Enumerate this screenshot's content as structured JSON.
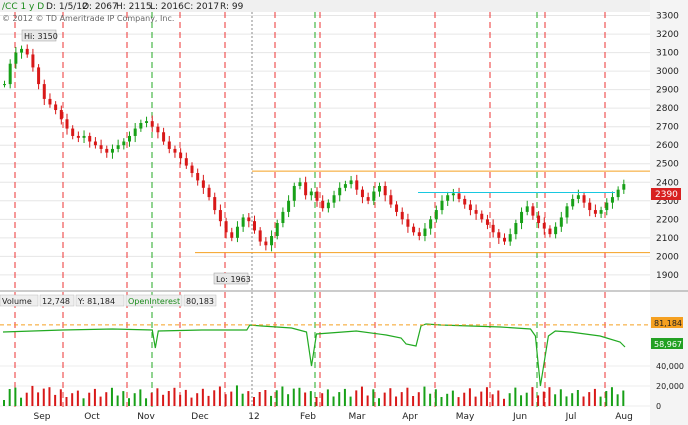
{
  "header": {
    "symbol": "/CC 1 y D",
    "date": "D: 1/5/12",
    "open": "O: 2067",
    "high": "H: 2115",
    "low": "L: 2016",
    "close": "C: 2017",
    "range": "R: 99",
    "copyright": "© 2012 © TD Ameritrade IP Company, Inc."
  },
  "annotations": {
    "hi": "Hi: 3150",
    "lo": "Lo: 1963"
  },
  "volume_panel": {
    "label": "Volume",
    "volume_value": "12,748",
    "y_readout": "Y: 81,184",
    "oi_label": "OpenInterest",
    "oi_value": "80,183",
    "oi_ref_tag": "81,184",
    "oi_last_tag": "58,967"
  },
  "colors": {
    "up": "#18a018",
    "down": "#d81818",
    "expiry_red": "#ee3333",
    "expiry_green": "#22aa22",
    "orange_line": "#f5a020",
    "cyan_line": "#18c8e0",
    "oi_line": "#22aa22",
    "price_tag_bg": "#d82020",
    "oi_tag_bg": "#22a022"
  },
  "chart_data": {
    "type": "candlestick",
    "price_axis": {
      "ticks": [
        1900,
        2000,
        2100,
        2200,
        2300,
        2400,
        2500,
        2600,
        2700,
        2800,
        2900,
        3000,
        3100,
        3200,
        3300
      ],
      "ylim": [
        1840,
        3330
      ]
    },
    "volume_axis": {
      "ticks": [
        "0",
        "20,000",
        "40,000"
      ],
      "ylim": [
        0,
        98000
      ]
    },
    "month_labels": [
      "Sep",
      "Oct",
      "Nov",
      "Dec",
      "12",
      "Feb",
      "Mar",
      "Apr",
      "May",
      "Jun",
      "Jul",
      "Aug"
    ],
    "series_close": [
      [
        0,
        2930
      ],
      [
        4,
        3040
      ],
      [
        8,
        3100
      ],
      [
        12,
        3120
      ],
      [
        16,
        3090
      ],
      [
        20,
        3020
      ],
      [
        24,
        2930
      ],
      [
        28,
        2850
      ],
      [
        32,
        2820
      ],
      [
        36,
        2790
      ],
      [
        40,
        2740
      ],
      [
        44,
        2690
      ],
      [
        48,
        2650
      ],
      [
        52,
        2640
      ],
      [
        56,
        2650
      ],
      [
        60,
        2620
      ],
      [
        64,
        2600
      ],
      [
        68,
        2580
      ],
      [
        72,
        2560
      ],
      [
        76,
        2580
      ],
      [
        80,
        2600
      ],
      [
        84,
        2620
      ],
      [
        88,
        2650
      ],
      [
        92,
        2690
      ],
      [
        96,
        2720
      ],
      [
        100,
        2730
      ],
      [
        104,
        2700
      ],
      [
        108,
        2670
      ],
      [
        112,
        2620
      ],
      [
        116,
        2580
      ],
      [
        120,
        2560
      ],
      [
        124,
        2530
      ],
      [
        128,
        2490
      ],
      [
        132,
        2450
      ],
      [
        136,
        2410
      ],
      [
        140,
        2370
      ],
      [
        144,
        2320
      ],
      [
        148,
        2250
      ],
      [
        152,
        2190
      ],
      [
        156,
        2130
      ],
      [
        160,
        2100
      ],
      [
        164,
        2160
      ],
      [
        168,
        2210
      ],
      [
        172,
        2190
      ],
      [
        176,
        2140
      ],
      [
        180,
        2080
      ],
      [
        184,
        2060
      ],
      [
        188,
        2110
      ],
      [
        192,
        2180
      ],
      [
        196,
        2240
      ],
      [
        200,
        2300
      ],
      [
        204,
        2380
      ],
      [
        208,
        2400
      ],
      [
        212,
        2330
      ],
      [
        216,
        2350
      ],
      [
        220,
        2300
      ],
      [
        224,
        2260
      ],
      [
        228,
        2290
      ],
      [
        232,
        2330
      ],
      [
        236,
        2370
      ],
      [
        240,
        2390
      ],
      [
        244,
        2410
      ],
      [
        248,
        2360
      ],
      [
        252,
        2320
      ],
      [
        256,
        2300
      ],
      [
        260,
        2350
      ],
      [
        264,
        2380
      ],
      [
        268,
        2330
      ],
      [
        272,
        2280
      ],
      [
        276,
        2240
      ],
      [
        280,
        2200
      ],
      [
        284,
        2160
      ],
      [
        288,
        2130
      ],
      [
        292,
        2110
      ],
      [
        296,
        2150
      ],
      [
        300,
        2200
      ],
      [
        304,
        2250
      ],
      [
        308,
        2300
      ],
      [
        312,
        2330
      ],
      [
        316,
        2340
      ],
      [
        320,
        2310
      ],
      [
        324,
        2280
      ],
      [
        328,
        2250
      ],
      [
        332,
        2230
      ],
      [
        336,
        2200
      ],
      [
        340,
        2170
      ],
      [
        344,
        2130
      ],
      [
        348,
        2100
      ],
      [
        352,
        2080
      ],
      [
        356,
        2120
      ],
      [
        360,
        2180
      ],
      [
        364,
        2240
      ],
      [
        368,
        2270
      ],
      [
        372,
        2220
      ],
      [
        376,
        2180
      ],
      [
        380,
        2150
      ],
      [
        384,
        2120
      ],
      [
        388,
        2160
      ],
      [
        392,
        2210
      ],
      [
        396,
        2270
      ],
      [
        400,
        2310
      ],
      [
        404,
        2330
      ],
      [
        408,
        2290
      ],
      [
        412,
        2250
      ],
      [
        416,
        2230
      ],
      [
        420,
        2250
      ],
      [
        424,
        2290
      ],
      [
        428,
        2320
      ],
      [
        432,
        2360
      ],
      [
        436,
        2390
      ]
    ],
    "dates_start": "2011-08-15",
    "open_interest": [
      [
        0,
        74000
      ],
      [
        60,
        76000
      ],
      [
        110,
        77000
      ],
      [
        150,
        76000
      ],
      [
        153,
        58000
      ],
      [
        156,
        75000
      ],
      [
        200,
        76000
      ],
      [
        245,
        76000
      ],
      [
        248,
        81000
      ],
      [
        260,
        80000
      ],
      [
        290,
        78000
      ],
      [
        305,
        74000
      ],
      [
        310,
        40000
      ],
      [
        315,
        72000
      ],
      [
        355,
        75000
      ],
      [
        385,
        71000
      ],
      [
        400,
        68000
      ],
      [
        405,
        62000
      ],
      [
        415,
        60000
      ],
      [
        420,
        80000
      ],
      [
        425,
        82000
      ],
      [
        440,
        81000
      ],
      [
        470,
        80000
      ],
      [
        500,
        79000
      ],
      [
        530,
        77000
      ],
      [
        535,
        70000
      ],
      [
        540,
        20000
      ],
      [
        548,
        70000
      ],
      [
        555,
        75000
      ],
      [
        570,
        74000
      ],
      [
        600,
        70000
      ],
      [
        620,
        64000
      ],
      [
        625,
        59000
      ]
    ]
  }
}
